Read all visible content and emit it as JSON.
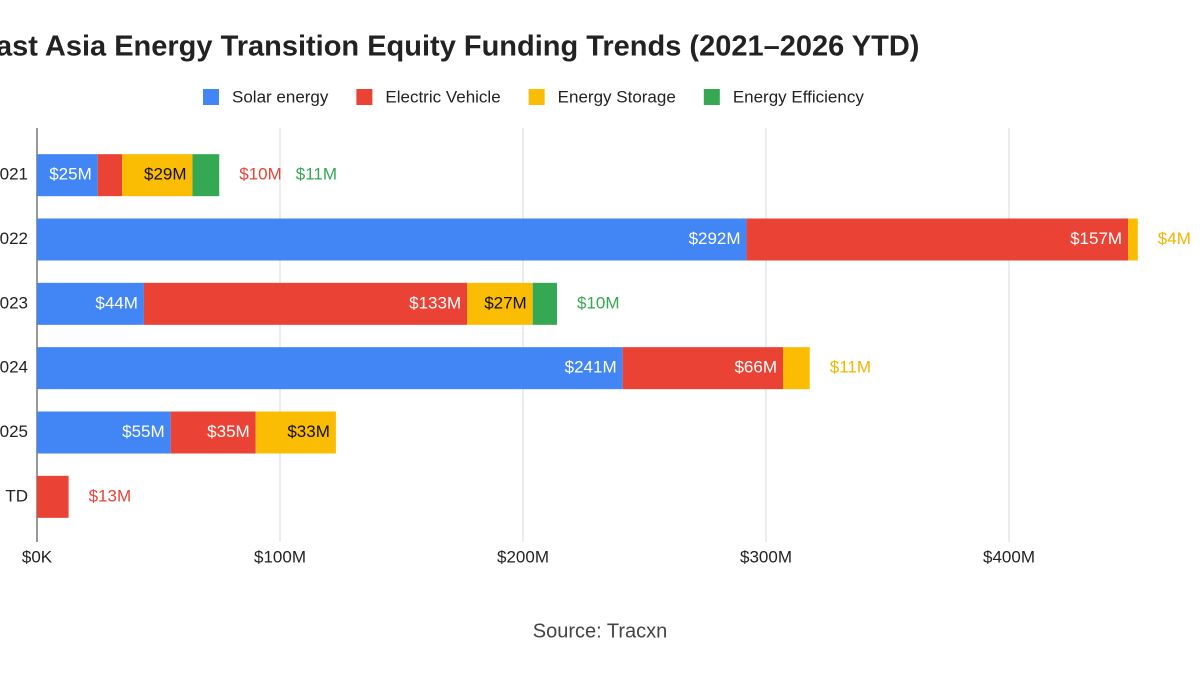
{
  "chart_data": {
    "type": "stacked-bar-horizontal",
    "title": "ast Asia Energy Transition Equity Funding Trends (2021–2026 YTD)",
    "categories": [
      "021",
      "022",
      "023",
      "024",
      "025",
      "TD"
    ],
    "series": [
      {
        "name": "Solar energy",
        "color": "#4285f4",
        "values": [
          25,
          292,
          44,
          241,
          55,
          null
        ],
        "value_labels": [
          "$25M",
          "$292M",
          "$44M",
          "$241M",
          "$55M",
          null
        ]
      },
      {
        "name": "Electric Vehicle",
        "color": "#ea4335",
        "values": [
          10,
          157,
          133,
          66,
          35,
          13
        ],
        "value_labels": [
          "$10M",
          "$157M",
          "$133M",
          "$66M",
          "$35M",
          "$13M"
        ]
      },
      {
        "name": "Energy Storage",
        "color": "#fbbc04",
        "values": [
          29,
          4,
          27,
          11,
          33,
          null
        ],
        "value_labels": [
          "$29M",
          "$4M",
          "$27M",
          "$11M",
          "$33M",
          null
        ]
      },
      {
        "name": "Energy Efficiency",
        "color": "#34a853",
        "values": [
          11,
          null,
          10,
          null,
          null,
          null
        ],
        "value_labels": [
          "$11M",
          null,
          "$10M",
          null,
          null,
          null
        ]
      }
    ],
    "xlim": [
      0,
      456
    ],
    "xticks": [
      {
        "value": 0,
        "label": "$0K"
      },
      {
        "value": 100,
        "label": "$100M"
      },
      {
        "value": 200,
        "label": "$200M"
      },
      {
        "value": 300,
        "label": "$300M"
      },
      {
        "value": 400,
        "label": "$400M"
      }
    ],
    "grid": true,
    "source": "Source: Tracxn"
  }
}
